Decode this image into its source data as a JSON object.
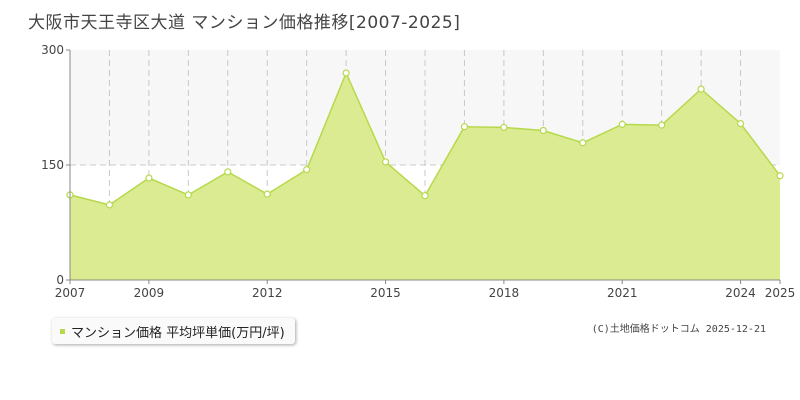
{
  "page": {
    "credit": "(C)土地価格ドットコム 2025-12-21"
  },
  "chart_data": {
    "type": "area",
    "title": "大阪市天王寺区大道 マンション価格推移[2007-2025]",
    "xlabel": "",
    "ylabel": "",
    "x": [
      2007,
      2008,
      2009,
      2010,
      2011,
      2012,
      2013,
      2014,
      2015,
      2016,
      2017,
      2018,
      2019,
      2020,
      2021,
      2022,
      2023,
      2024,
      2025
    ],
    "series": [
      {
        "name": "マンション価格 平均坪単価(万円/坪)",
        "values": [
          111,
          98,
          133,
          111,
          141,
          112,
          144,
          270,
          154,
          110,
          200,
          199,
          195,
          179,
          203,
          202,
          249,
          204,
          136
        ]
      }
    ],
    "xlim": [
      2007,
      2025
    ],
    "ylim": [
      0,
      300
    ],
    "y_ticks": [
      "0",
      "150",
      "300"
    ],
    "x_tick_labels": [
      "2007",
      "2009",
      "2012",
      "2015",
      "2018",
      "2021",
      "2024",
      "2025"
    ],
    "x_tick_values": [
      2007,
      2009,
      2012,
      2015,
      2018,
      2021,
      2024,
      2025
    ],
    "legend_position": "bottom-left",
    "grid": true,
    "colors": {
      "fill": "#dbeb91",
      "line": "#b6d94c",
      "point_stroke": "#b6d94c",
      "point_fill": "#ffffff",
      "band": "#f7f7f7",
      "grid": "#c8c8c8"
    }
  }
}
